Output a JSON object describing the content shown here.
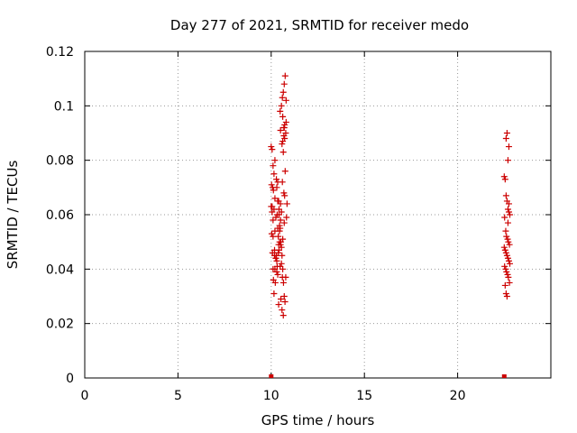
{
  "chart_data": {
    "type": "scatter",
    "title": "Day 277 of 2021, SRMTID for receiver medo",
    "xlabel": "GPS time / hours",
    "ylabel": "SRMTID / TECUs",
    "xlim": [
      0,
      25
    ],
    "ylim": [
      0,
      0.12
    ],
    "x_ticks": [
      0,
      5,
      10,
      15,
      20
    ],
    "x_tick_labels": [
      "0",
      "5",
      "10",
      "15",
      "20"
    ],
    "y_ticks": [
      0,
      0.02,
      0.04,
      0.06,
      0.08,
      0.1,
      0.12
    ],
    "y_tick_labels": [
      "0",
      "0.02",
      "0.04",
      "0.06",
      "0.08",
      "0.1",
      "0.12"
    ],
    "grid": true,
    "legend": "none",
    "marker": "plus",
    "color": "#cc0000",
    "series": [
      {
        "x": [
          10.0,
          10.05,
          10.1,
          10.02,
          10.08,
          10.12,
          10.0,
          10.15,
          10.05,
          10.1,
          10.2,
          10.03,
          10.07,
          10.18,
          10.25,
          10.1,
          10.3,
          10.22,
          10.15,
          10.28,
          10.35,
          10.2,
          10.4,
          10.32,
          10.25,
          10.45,
          10.38,
          10.5,
          10.42,
          10.3,
          10.55,
          10.48,
          10.35,
          10.6,
          10.52,
          10.4,
          10.58,
          10.65,
          10.45,
          10.62,
          10.7,
          10.5,
          10.68,
          10.55,
          10.72,
          10.6,
          10.75,
          10.65,
          10.78,
          10.7,
          10.8,
          10.62,
          10.55,
          10.48,
          10.68,
          10.72,
          10.58,
          10.5,
          10.42,
          10.35,
          10.28,
          10.2,
          10.12,
          10.6,
          10.65,
          10.7,
          10.75,
          10.8,
          10.72,
          10.68,
          10.62,
          10.55,
          10.5,
          10.45,
          10.4,
          10.38,
          10.32,
          10.25,
          10.18,
          10.1,
          10.05,
          10.3,
          10.35,
          10.42,
          10.48,
          10.52,
          10.58,
          10.62,
          10.66,
          10.7,
          10.74,
          10.78,
          10.82,
          10.85,
          10.2,
          10.15
        ],
        "y": [
          0.085,
          0.084,
          0.078,
          0.071,
          0.07,
          0.069,
          0.063,
          0.062,
          0.061,
          0.058,
          0.054,
          0.053,
          0.046,
          0.045,
          0.044,
          0.04,
          0.039,
          0.035,
          0.031,
          0.073,
          0.072,
          0.066,
          0.065,
          0.06,
          0.059,
          0.056,
          0.052,
          0.049,
          0.047,
          0.043,
          0.042,
          0.041,
          0.038,
          0.037,
          0.029,
          0.027,
          0.025,
          0.023,
          0.05,
          0.051,
          0.057,
          0.064,
          0.068,
          0.048,
          0.067,
          0.072,
          0.076,
          0.083,
          0.09,
          0.092,
          0.094,
          0.096,
          0.1,
          0.098,
          0.089,
          0.088,
          0.086,
          0.091,
          0.062,
          0.055,
          0.045,
          0.04,
          0.036,
          0.103,
          0.105,
          0.108,
          0.111,
          0.102,
          0.093,
          0.092,
          0.087,
          0.061,
          0.058,
          0.054,
          0.049,
          0.046,
          0.041,
          0.044,
          0.047,
          0.052,
          0.063,
          0.07,
          0.065,
          0.06,
          0.055,
          0.05,
          0.045,
          0.04,
          0.035,
          0.03,
          0.028,
          0.037,
          0.059,
          0.064,
          0.08,
          0.075
        ],
        "baseline_x": [
          10.0
        ]
      },
      {
        "x": [
          22.5,
          22.55,
          22.6,
          22.65,
          22.7,
          22.75,
          22.8,
          22.52,
          22.58,
          22.62,
          22.68,
          22.72,
          22.78,
          22.5,
          22.55,
          22.6,
          22.65,
          22.7,
          22.75,
          22.8,
          22.52,
          22.58,
          22.62,
          22.68,
          22.72,
          22.78,
          22.55,
          22.6,
          22.65,
          22.7,
          22.75,
          22.6,
          22.65,
          22.7,
          22.75
        ],
        "y": [
          0.074,
          0.073,
          0.067,
          0.065,
          0.062,
          0.061,
          0.06,
          0.059,
          0.054,
          0.052,
          0.051,
          0.05,
          0.049,
          0.048,
          0.047,
          0.046,
          0.045,
          0.044,
          0.043,
          0.042,
          0.041,
          0.04,
          0.039,
          0.038,
          0.037,
          0.035,
          0.034,
          0.031,
          0.03,
          0.08,
          0.085,
          0.088,
          0.09,
          0.057,
          0.064
        ],
        "baseline_x": [
          22.5
        ]
      }
    ]
  }
}
